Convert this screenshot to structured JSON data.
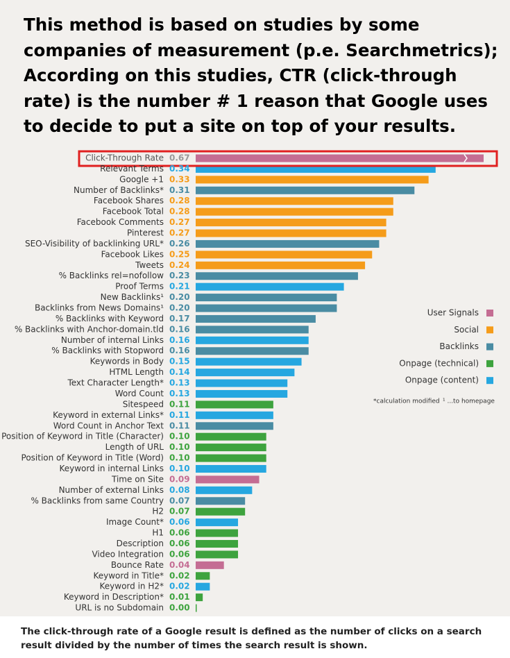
{
  "heading": "This method is based on studies by some companies of measurement (p.e. Searchmetrics); According on this studies, CTR (click-through rate) is the number # 1 reason that Google uses to decide to put a site on top of your results.",
  "chart_data": {
    "type": "bar",
    "orientation": "horizontal",
    "categories": [
      "Click-Through Rate",
      "Relevant Terms",
      "Google +1",
      "Number of Backlinks*",
      "Facebook Shares",
      "Facebook Total",
      "Facebook Comments",
      "Pinterest",
      "SEO-Visibility of backlinking URL*",
      "Facebook Likes",
      "Tweets",
      "% Backlinks rel=nofollow",
      "Proof Terms",
      "New Backlinks¹",
      "Backlinks from News Domains¹",
      "% Backlinks with Keyword",
      "% Backlinks with Anchor-domain.tld",
      "Number of internal Links",
      "% Backlinks with Stopword",
      "Keywords in Body",
      "HTML Length",
      "Text Character Length*",
      "Word Count",
      "Sitespeed",
      "Keyword in external Links*",
      "Word Count in Anchor Text",
      "Position of Keyword in Title (Character)",
      "Length of URL",
      "Position of Keyword in Title (Word)",
      "Keyword in internal Links",
      "Time on Site",
      "Number of external Links",
      "% Backlinks from same Country",
      "H2",
      "Image Count*",
      "H1",
      "Description",
      "Video Integration",
      "Bounce Rate",
      "Keyword in Title*",
      "Keyword in H2*",
      "Keyword in Description*",
      "URL is no Subdomain"
    ],
    "values": [
      0.67,
      0.34,
      0.33,
      0.31,
      0.28,
      0.28,
      0.27,
      0.27,
      0.26,
      0.25,
      0.24,
      0.23,
      0.21,
      0.2,
      0.2,
      0.17,
      0.16,
      0.16,
      0.16,
      0.15,
      0.14,
      0.13,
      0.13,
      0.11,
      0.11,
      0.11,
      0.1,
      0.1,
      0.1,
      0.1,
      0.09,
      0.08,
      0.07,
      0.07,
      0.06,
      0.06,
      0.06,
      0.06,
      0.04,
      0.02,
      0.02,
      0.01,
      0
    ],
    "value_labels": [
      "0.67",
      "0.34",
      "0.33",
      "0.31",
      "0.28",
      "0.28",
      "0.27",
      "0.27",
      "0.26",
      "0.25",
      "0.24",
      "0.23",
      "0.21",
      "0.20",
      "0.20",
      "0.17",
      "0.16",
      "0.16",
      "0.16",
      "0.15",
      "0.14",
      "0.13",
      "0.13",
      "0.11",
      "0.11",
      "0.11",
      "0.10",
      "0.10",
      "0.10",
      "0.10",
      "0.09",
      "0.08",
      "0.07",
      "0.07",
      "0.06",
      "0.06",
      "0.06",
      "0.06",
      "0.04",
      "0.02",
      "0.02",
      "0.01",
      "0.00"
    ],
    "colors": [
      "#c46d93",
      "#26a7e0",
      "#f59c1a",
      "#4a8ca3",
      "#f59c1a",
      "#f59c1a",
      "#f59c1a",
      "#f59c1a",
      "#4a8ca3",
      "#f59c1a",
      "#f59c1a",
      "#4a8ca3",
      "#26a7e0",
      "#4a8ca3",
      "#4a8ca3",
      "#4a8ca3",
      "#4a8ca3",
      "#26a7e0",
      "#4a8ca3",
      "#26a7e0",
      "#26a7e0",
      "#26a7e0",
      "#26a7e0",
      "#3ea33e",
      "#26a7e0",
      "#4a8ca3",
      "#3ea33e",
      "#3ea33e",
      "#3ea33e",
      "#26a7e0",
      "#c46d93",
      "#26a7e0",
      "#4a8ca3",
      "#3ea33e",
      "#26a7e0",
      "#3ea33e",
      "#3ea33e",
      "#3ea33e",
      "#c46d93",
      "#3ea33e",
      "#26a7e0",
      "#3ea33e",
      "#3ea33e"
    ],
    "xlim": [
      0,
      0.41
    ],
    "legend": [
      {
        "name": "User Signals",
        "color": "#c46d93"
      },
      {
        "name": "Social",
        "color": "#f59c1a"
      },
      {
        "name": "Backlinks",
        "color": "#4a8ca3"
      },
      {
        "name": "Onpage (technical)",
        "color": "#3ea33e"
      },
      {
        "name": "Onpage (content)",
        "color": "#26a7e0"
      }
    ],
    "footnotes": [
      "*calculation modified",
      "¹ ...to homepage"
    ]
  },
  "caption": "The click-through rate of a Google result is defined as the number of clicks on a search result divided by the number of times the search result is shown."
}
